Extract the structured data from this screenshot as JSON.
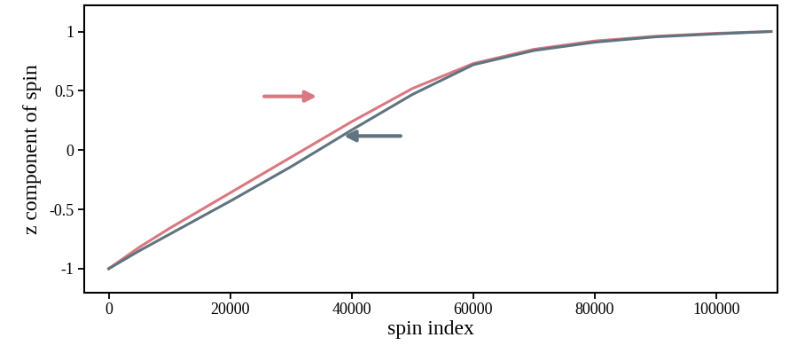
{
  "chart_data": {
    "type": "line",
    "x_label": "spin index",
    "y_label": "z component of spin",
    "x": [
      0,
      5000,
      10000,
      20000,
      30000,
      40000,
      50000,
      60000,
      70000,
      80000,
      90000,
      100000,
      109000
    ],
    "series": [
      {
        "color": "#d97880",
        "values": [
          -1,
          -0.82,
          -0.66,
          -0.36,
          -0.06,
          0.24,
          0.52,
          0.73,
          0.85,
          0.92,
          0.96,
          0.985,
          1
        ]
      },
      {
        "color": "#5f7480",
        "values": [
          -1,
          -0.85,
          -0.71,
          -0.43,
          -0.14,
          0.17,
          0.47,
          0.72,
          0.84,
          0.91,
          0.955,
          0.98,
          1
        ]
      }
    ],
    "xlim": [
      -4000,
      110000
    ],
    "ylim": [
      -1.2,
      1.22
    ],
    "xticks": [
      0,
      20000,
      40000,
      60000,
      80000,
      100000
    ],
    "yticks": [
      -1,
      -0.5,
      0,
      0.5,
      1
    ],
    "grid": false
  }
}
